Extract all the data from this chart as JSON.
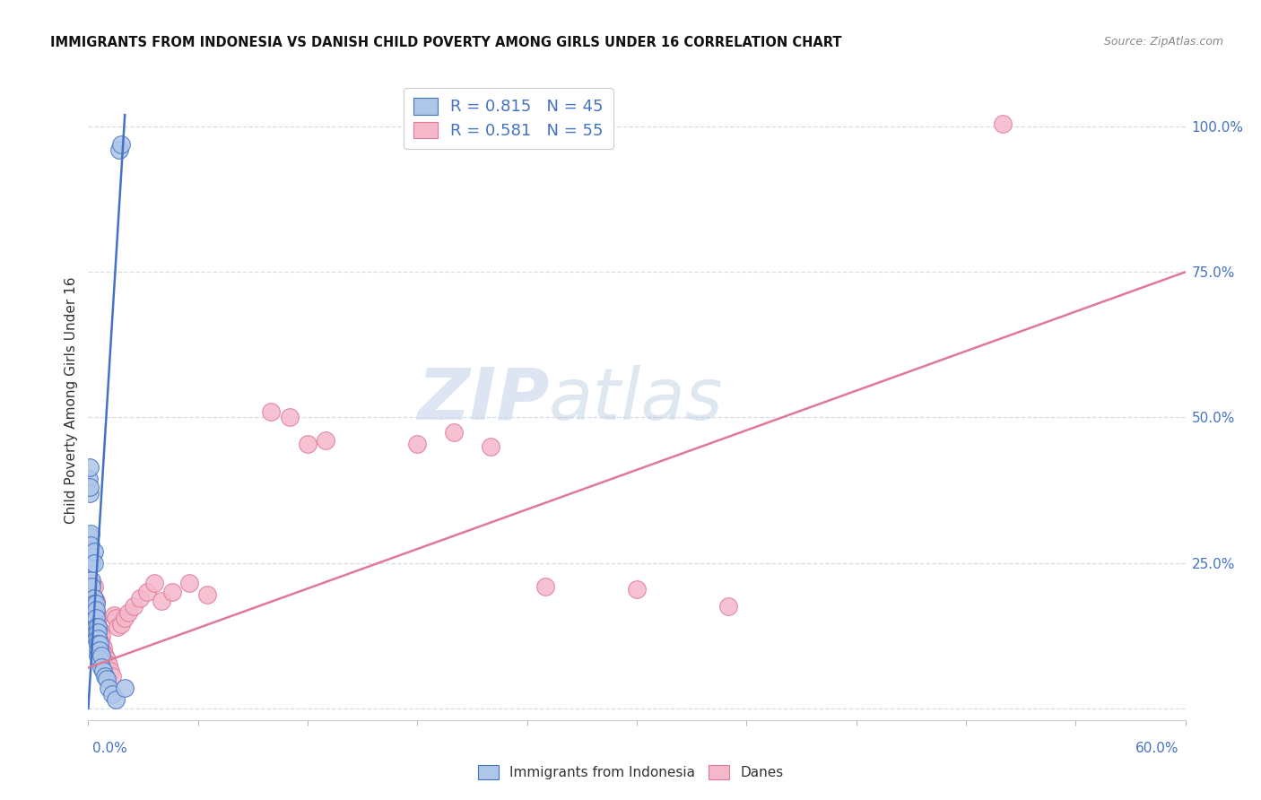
{
  "title": "IMMIGRANTS FROM INDONESIA VS DANISH CHILD POVERTY AMONG GIRLS UNDER 16 CORRELATION CHART",
  "source": "Source: ZipAtlas.com",
  "ylabel": "Child Poverty Among Girls Under 16",
  "legend_blue_r": "R = 0.815",
  "legend_blue_n": "N = 45",
  "legend_pink_r": "R = 0.581",
  "legend_pink_n": "N = 55",
  "watermark_zip": "ZIP",
  "watermark_atlas": "atlas",
  "blue_color": "#aec6e8",
  "blue_edge_color": "#4472c4",
  "pink_color": "#f5b8cb",
  "pink_edge_color": "#e07898",
  "blue_line_color": "#4472c4",
  "pink_line_color": "#e07898",
  "xlim": [
    0.0,
    0.6
  ],
  "ylim": [
    -0.02,
    1.08
  ],
  "ytick_values": [
    0.0,
    0.25,
    0.5,
    0.75,
    1.0
  ],
  "ytick_labels": [
    "",
    "25.0%",
    "50.0%",
    "75.0%",
    "100.0%"
  ],
  "blue_scatter": [
    [
      0.0005,
      0.395
    ],
    [
      0.001,
      0.415
    ],
    [
      0.0008,
      0.285
    ],
    [
      0.001,
      0.295
    ],
    [
      0.0012,
      0.3
    ],
    [
      0.0015,
      0.28
    ],
    [
      0.001,
      0.37
    ],
    [
      0.0008,
      0.38
    ],
    [
      0.002,
      0.26
    ],
    [
      0.002,
      0.25
    ],
    [
      0.002,
      0.22
    ],
    [
      0.003,
      0.27
    ],
    [
      0.003,
      0.25
    ],
    [
      0.002,
      0.21
    ],
    [
      0.003,
      0.19
    ],
    [
      0.003,
      0.18
    ],
    [
      0.003,
      0.17
    ],
    [
      0.003,
      0.16
    ],
    [
      0.003,
      0.15
    ],
    [
      0.004,
      0.18
    ],
    [
      0.004,
      0.17
    ],
    [
      0.004,
      0.155
    ],
    [
      0.004,
      0.14
    ],
    [
      0.004,
      0.13
    ],
    [
      0.004,
      0.12
    ],
    [
      0.005,
      0.14
    ],
    [
      0.005,
      0.13
    ],
    [
      0.005,
      0.12
    ],
    [
      0.005,
      0.11
    ],
    [
      0.005,
      0.1
    ],
    [
      0.005,
      0.09
    ],
    [
      0.006,
      0.11
    ],
    [
      0.006,
      0.1
    ],
    [
      0.006,
      0.085
    ],
    [
      0.007,
      0.09
    ],
    [
      0.007,
      0.07
    ],
    [
      0.008,
      0.065
    ],
    [
      0.009,
      0.055
    ],
    [
      0.01,
      0.05
    ],
    [
      0.011,
      0.035
    ],
    [
      0.013,
      0.025
    ],
    [
      0.015,
      0.015
    ],
    [
      0.017,
      0.96
    ],
    [
      0.018,
      0.97
    ],
    [
      0.02,
      0.035
    ]
  ],
  "pink_scatter": [
    [
      0.001,
      0.195
    ],
    [
      0.001,
      0.17
    ],
    [
      0.002,
      0.215
    ],
    [
      0.002,
      0.195
    ],
    [
      0.002,
      0.17
    ],
    [
      0.002,
      0.155
    ],
    [
      0.003,
      0.21
    ],
    [
      0.003,
      0.19
    ],
    [
      0.003,
      0.17
    ],
    [
      0.003,
      0.155
    ],
    [
      0.003,
      0.14
    ],
    [
      0.004,
      0.185
    ],
    [
      0.004,
      0.165
    ],
    [
      0.004,
      0.145
    ],
    [
      0.005,
      0.155
    ],
    [
      0.005,
      0.14
    ],
    [
      0.005,
      0.125
    ],
    [
      0.005,
      0.11
    ],
    [
      0.006,
      0.135
    ],
    [
      0.006,
      0.12
    ],
    [
      0.006,
      0.105
    ],
    [
      0.007,
      0.125
    ],
    [
      0.007,
      0.11
    ],
    [
      0.008,
      0.105
    ],
    [
      0.008,
      0.095
    ],
    [
      0.009,
      0.09
    ],
    [
      0.01,
      0.085
    ],
    [
      0.011,
      0.075
    ],
    [
      0.012,
      0.065
    ],
    [
      0.013,
      0.055
    ],
    [
      0.014,
      0.16
    ],
    [
      0.015,
      0.155
    ],
    [
      0.016,
      0.14
    ],
    [
      0.018,
      0.145
    ],
    [
      0.02,
      0.155
    ],
    [
      0.022,
      0.165
    ],
    [
      0.025,
      0.175
    ],
    [
      0.028,
      0.19
    ],
    [
      0.032,
      0.2
    ],
    [
      0.036,
      0.215
    ],
    [
      0.04,
      0.185
    ],
    [
      0.046,
      0.2
    ],
    [
      0.055,
      0.215
    ],
    [
      0.065,
      0.195
    ],
    [
      0.1,
      0.51
    ],
    [
      0.11,
      0.5
    ],
    [
      0.12,
      0.455
    ],
    [
      0.13,
      0.46
    ],
    [
      0.18,
      0.455
    ],
    [
      0.2,
      0.475
    ],
    [
      0.22,
      0.45
    ],
    [
      0.25,
      0.21
    ],
    [
      0.3,
      0.205
    ],
    [
      0.35,
      0.175
    ],
    [
      0.5,
      1.005
    ]
  ],
  "blue_line_pts": [
    [
      0.0,
      0.0
    ],
    [
      0.02,
      1.02
    ]
  ],
  "pink_line_pts": [
    [
      0.0,
      0.07
    ],
    [
      0.6,
      0.75
    ]
  ],
  "background_color": "#ffffff",
  "grid_color": "#d8dce8"
}
